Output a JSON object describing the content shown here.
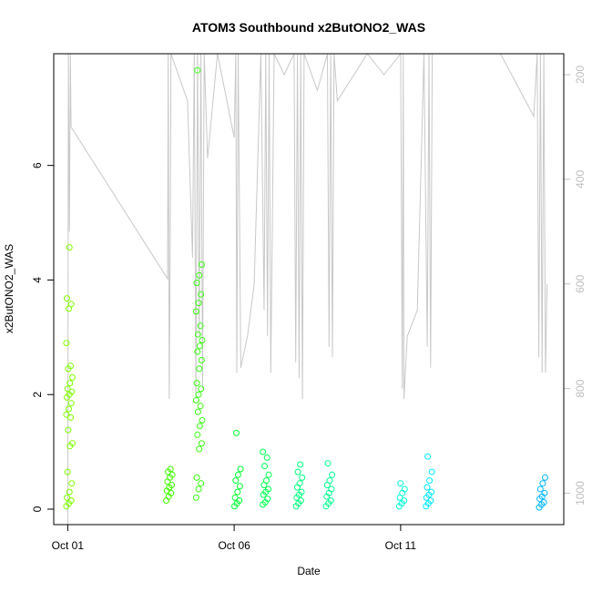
{
  "chart_data": {
    "type": "scatter",
    "title": "ATOM3 Southbound x2ButONO2_WAS",
    "xlabel": "Date",
    "ylabel": "x2ButONO2_WAS",
    "x_unit": "day of October",
    "xlim": [
      0.58,
      15.9
    ],
    "ylim": [
      -0.27,
      7.95
    ],
    "ylim_right": [
      1060,
      160
    ],
    "x_ticks": [
      {
        "value": 1,
        "label": "Oct 01"
      },
      {
        "value": 6,
        "label": "Oct 06"
      },
      {
        "value": 11,
        "label": "Oct 11"
      }
    ],
    "y_ticks": [
      {
        "value": 0,
        "label": "0"
      },
      {
        "value": 2,
        "label": "2"
      },
      {
        "value": 4,
        "label": "4"
      },
      {
        "value": 6,
        "label": "6"
      }
    ],
    "y2_ticks": [
      {
        "value": 200,
        "label": "200"
      },
      {
        "value": 400,
        "label": "400"
      },
      {
        "value": 600,
        "label": "600"
      },
      {
        "value": 800,
        "label": "800"
      },
      {
        "value": 1000,
        "label": "1000"
      }
    ],
    "point_style": "open circle, color varies with time (green to blue)",
    "secondary_line": {
      "description": "pressure altitude trace (right axis)",
      "color": "#c8c8c8"
    },
    "groups": [
      {
        "x": 1.05,
        "color": "#80ff00",
        "values": [
          0.05,
          0.1,
          0.15,
          0.2,
          0.3,
          0.45,
          0.65,
          1.1,
          1.15,
          1.38,
          1.6,
          1.65,
          1.75,
          1.85,
          1.95,
          2.0,
          2.05,
          2.1,
          2.2,
          2.3,
          2.45,
          2.5,
          2.9,
          3.5,
          3.58,
          3.68,
          4.57
        ]
      },
      {
        "x": 4.05,
        "color": "#40ff00",
        "values": [
          0.15,
          0.22,
          0.28,
          0.32,
          0.38,
          0.42,
          0.48,
          0.55,
          0.6,
          0.65,
          0.7
        ]
      },
      {
        "x": 4.95,
        "color": "#38ff10",
        "values": [
          0.2,
          0.35,
          0.45,
          0.55,
          1.05,
          1.15,
          1.3,
          1.45,
          1.55,
          1.7,
          1.8,
          1.9,
          2.0,
          2.1,
          2.2,
          2.45,
          2.6,
          2.75,
          2.85,
          2.95,
          3.05,
          3.2,
          3.45,
          3.6,
          3.75,
          3.95,
          4.08,
          4.27,
          7.66
        ]
      },
      {
        "x": 6.1,
        "color": "#00ff30",
        "values": [
          0.05,
          0.1,
          0.15,
          0.2,
          0.3,
          0.4,
          0.5,
          0.6,
          0.7,
          1.33
        ]
      },
      {
        "x": 6.95,
        "color": "#00ff50",
        "values": [
          0.08,
          0.12,
          0.18,
          0.25,
          0.3,
          0.35,
          0.42,
          0.5,
          0.6,
          0.75,
          0.9,
          1.0
        ]
      },
      {
        "x": 7.95,
        "color": "#00ff80",
        "values": [
          0.05,
          0.1,
          0.15,
          0.2,
          0.25,
          0.3,
          0.38,
          0.45,
          0.55,
          0.65,
          0.78
        ]
      },
      {
        "x": 8.85,
        "color": "#00ff90",
        "values": [
          0.05,
          0.1,
          0.15,
          0.22,
          0.28,
          0.35,
          0.42,
          0.5,
          0.6,
          0.8
        ]
      },
      {
        "x": 11.05,
        "color": "#00ffd8",
        "values": [
          0.05,
          0.1,
          0.15,
          0.2,
          0.28,
          0.35,
          0.45
        ]
      },
      {
        "x": 11.85,
        "color": "#00e8ff",
        "values": [
          0.05,
          0.1,
          0.15,
          0.2,
          0.25,
          0.3,
          0.38,
          0.5,
          0.65,
          0.92
        ]
      },
      {
        "x": 15.25,
        "color": "#00b8ff",
        "values": [
          0.03,
          0.08,
          0.12,
          0.18,
          0.22,
          0.28,
          0.35,
          0.45,
          0.55
        ]
      }
    ]
  }
}
